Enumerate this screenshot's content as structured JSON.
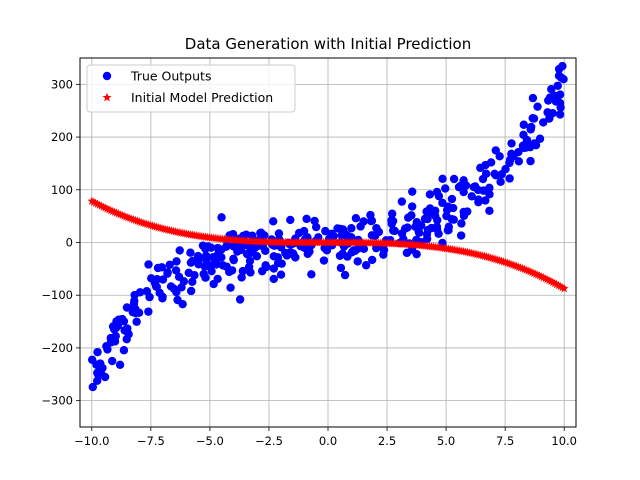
{
  "chart_data": {
    "type": "scatter",
    "title": "Data Generation with Initial Prediction",
    "xlabel": "",
    "ylabel": "",
    "xlim": [
      -10.5,
      10.5
    ],
    "ylim": [
      -350,
      350
    ],
    "xticks": [
      -10.0,
      -7.5,
      -5.0,
      -2.5,
      0.0,
      2.5,
      5.0,
      7.5,
      10.0
    ],
    "xtick_labels": [
      "−10.0",
      "−7.5",
      "−5.0",
      "−2.5",
      "0.0",
      "2.5",
      "5.0",
      "7.5",
      "10.0"
    ],
    "yticks": [
      -300,
      -200,
      -100,
      0,
      100,
      200,
      300
    ],
    "ytick_labels": [
      "−300",
      "−200",
      "−100",
      "0",
      "100",
      "200",
      "300"
    ],
    "grid": true,
    "legend_position": "top-left",
    "series": [
      {
        "name": "True Outputs",
        "marker": "circle",
        "color": "#0000ff",
        "model": {
          "type": "cubic",
          "a": 0.26,
          "b": 0.35,
          "c": 2.5,
          "d": 0,
          "noise_sd": 28,
          "n": 400
        }
      },
      {
        "name": "Initial Model Prediction",
        "marker": "star",
        "color": "#ff0000",
        "model": {
          "type": "cubic",
          "a": -0.083,
          "b": -0.045,
          "c": 0,
          "d": 0,
          "noise_sd": 0,
          "n": 250
        }
      }
    ],
    "x_range": [
      -10.0,
      10.0
    ]
  }
}
